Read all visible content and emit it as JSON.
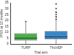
{
  "chart_data": {
    "type": "box",
    "x_label": "Trial arm",
    "y_label": "IPSS at 12 months",
    "categories": [
      "TURP",
      "ThuVEP"
    ],
    "colors": [
      "#4cae4c",
      "#3a87c8"
    ],
    "stats": [
      {
        "min": 0,
        "q1": 3,
        "median": 5,
        "q3": 9,
        "max": 18,
        "outliers": [
          19,
          21,
          23,
          25,
          27
        ]
      },
      {
        "min": 0,
        "q1": 4,
        "median": 6,
        "q3": 11,
        "max": 21,
        "outliers": [
          23,
          27,
          30,
          34
        ]
      }
    ],
    "ylim": [
      0,
      35
    ],
    "yticks": [
      0,
      5,
      10,
      15,
      20,
      25,
      30,
      35
    ],
    "grid": false
  }
}
